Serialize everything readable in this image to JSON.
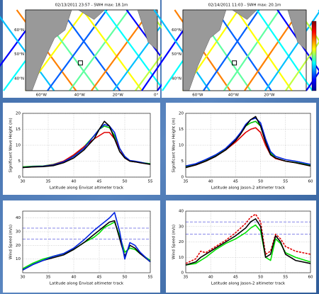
{
  "chart_data": [
    {
      "type": "map",
      "title": "02/13/2011 23:57 - SWH max: 18.1m",
      "lat_labels": [
        "60°N",
        "50°N",
        "40°N"
      ],
      "lon_labels": [
        "60°W",
        "40°W",
        "20°W",
        "0°"
      ]
    },
    {
      "type": "map",
      "title": "02/14/2011 11:03 - SWH max: 20.1m",
      "lat_labels": [
        "60°N",
        "50°N",
        "40°N"
      ],
      "lon_labels": [
        "60°W",
        "40°W",
        "20°W"
      ],
      "colorbar": true
    },
    {
      "type": "line",
      "xlabel": "Latitude along Envisat altimeter track",
      "ylabel": "Significant Wave Height (m)",
      "xlim": [
        30,
        55
      ],
      "ylim": [
        0,
        20
      ],
      "xticks": [
        30,
        35,
        40,
        45,
        50,
        55
      ],
      "yticks": [
        0,
        5,
        10,
        15,
        20
      ],
      "grid": true,
      "x": [
        30,
        32,
        34,
        36,
        38,
        40,
        42,
        44,
        45,
        46,
        47,
        48,
        49,
        50,
        51,
        52,
        53,
        55
      ],
      "series": [
        {
          "color": "#00c000",
          "values": [
            3.2,
            3.4,
            3.5,
            4,
            5,
            6.8,
            9.5,
            13,
            15,
            16,
            15.5,
            13,
            9,
            6.5,
            5,
            4.8,
            4.6,
            4.2
          ]
        },
        {
          "color": "#e00000",
          "values": [
            3,
            3.2,
            3.4,
            3.9,
            5,
            7,
            9.5,
            12,
            13,
            14,
            14,
            12,
            9,
            6,
            5,
            4.8,
            4.5,
            4
          ]
        },
        {
          "color": "#0020e0",
          "values": [
            3,
            3.3,
            3.4,
            3.8,
            4.8,
            6.5,
            9,
            13,
            15,
            16.5,
            16,
            14,
            9,
            6.5,
            5.2,
            5,
            4.7,
            4
          ]
        },
        {
          "color": "#000000",
          "values": [
            3,
            3.2,
            3.3,
            3.6,
            4.5,
            6,
            8.5,
            12,
            15,
            17.5,
            16,
            12,
            8,
            6,
            5,
            4.8,
            4.5,
            4
          ]
        }
      ]
    },
    {
      "type": "line",
      "xlabel": "Latitude along Jason-2 altimeter track",
      "ylabel": "Significant Wave Height (m)",
      "xlim": [
        35,
        60
      ],
      "ylim": [
        0,
        20
      ],
      "xticks": [
        35,
        40,
        45,
        50,
        55,
        60
      ],
      "yticks": [
        0,
        5,
        10,
        15,
        20
      ],
      "grid": true,
      "x": [
        35,
        37,
        39,
        41,
        43,
        45,
        46,
        47,
        48,
        49,
        50,
        51,
        52,
        53,
        55,
        57,
        60
      ],
      "series": [
        {
          "color": "#00c000",
          "values": [
            3.2,
            4,
            5.2,
            6.8,
            8.8,
            12,
            13.8,
            16,
            17,
            17.5,
            16,
            11,
            7.5,
            6,
            5,
            4.6,
            3.8
          ]
        },
        {
          "color": "#e00000",
          "values": [
            3,
            3.8,
            5,
            6.5,
            8.5,
            11,
            12.5,
            14,
            15,
            15.5,
            14,
            10,
            7,
            5.8,
            5,
            4.5,
            3.5
          ]
        },
        {
          "color": "#0020e0",
          "values": [
            3.5,
            4.2,
            5.5,
            7,
            9,
            12,
            14,
            16.5,
            18,
            18.5,
            17,
            12,
            8,
            6.5,
            5.5,
            5,
            4
          ]
        },
        {
          "color": "#000000",
          "values": [
            3,
            3.8,
            5,
            6.5,
            8.5,
            11.5,
            13.5,
            16,
            18,
            19,
            16,
            11,
            7,
            6,
            5,
            4.5,
            3.5
          ]
        }
      ]
    },
    {
      "type": "line",
      "xlabel": "Latitude along Envisat altimeter track",
      "ylabel": "Wind Speed (m/s)",
      "xlim": [
        30,
        55
      ],
      "ylim": [
        0,
        45
      ],
      "xticks": [
        30,
        35,
        40,
        45,
        50,
        55
      ],
      "yticks": [
        10,
        20,
        30,
        40
      ],
      "grid": true,
      "hlines": [
        32.6,
        24.5
      ],
      "x": [
        30,
        32,
        34,
        36,
        38,
        40,
        42,
        44,
        45,
        46,
        47,
        48,
        49,
        50,
        51,
        52,
        53,
        55
      ],
      "series": [
        {
          "color": "#00e000",
          "values": [
            3,
            7,
            10,
            12,
            14,
            17,
            22,
            26,
            29,
            33,
            35,
            37,
            27,
            15,
            18,
            17,
            14,
            9
          ]
        },
        {
          "color": "#000000",
          "values": [
            2,
            6,
            9,
            11,
            13,
            17,
            22,
            28,
            31,
            34,
            37,
            38,
            25,
            12,
            20,
            18,
            14,
            8
          ]
        },
        {
          "color": "#0020e0",
          "values": [
            2,
            6,
            9,
            12,
            14,
            18,
            24,
            31,
            34,
            37,
            40,
            44,
            30,
            10,
            22,
            20,
            15,
            8
          ]
        }
      ]
    },
    {
      "type": "line",
      "xlabel": "Latitude along Jason-2 altimeter track",
      "ylabel": "Wind Speed (m/s)",
      "xlim": [
        35,
        60
      ],
      "ylim": [
        0,
        40
      ],
      "xticks": [
        35,
        40,
        45,
        50,
        55,
        60
      ],
      "yticks": [
        0,
        10,
        20,
        30,
        40
      ],
      "grid": true,
      "hlines": [
        33,
        25
      ],
      "x": [
        35,
        37,
        38,
        39,
        41,
        43,
        45,
        47,
        48,
        49,
        50,
        51,
        52,
        53,
        54,
        55,
        57,
        60
      ],
      "series": [
        {
          "color": "#e00000",
          "dashed": true,
          "values": [
            6,
            9,
            14,
            13,
            17,
            21,
            26,
            32,
            36,
            38,
            33,
            12,
            14,
            25,
            22,
            17,
            14,
            12
          ]
        },
        {
          "color": "#00e000",
          "values": [
            5,
            6,
            8,
            10,
            15,
            19,
            22,
            26,
            29,
            31,
            27,
            10,
            8,
            22,
            19,
            13,
            10,
            7
          ]
        },
        {
          "color": "#000000",
          "values": [
            5,
            7,
            10,
            12,
            16,
            20,
            24,
            29,
            33,
            35,
            30,
            10,
            12,
            24,
            20,
            12,
            8,
            6
          ]
        }
      ]
    }
  ]
}
